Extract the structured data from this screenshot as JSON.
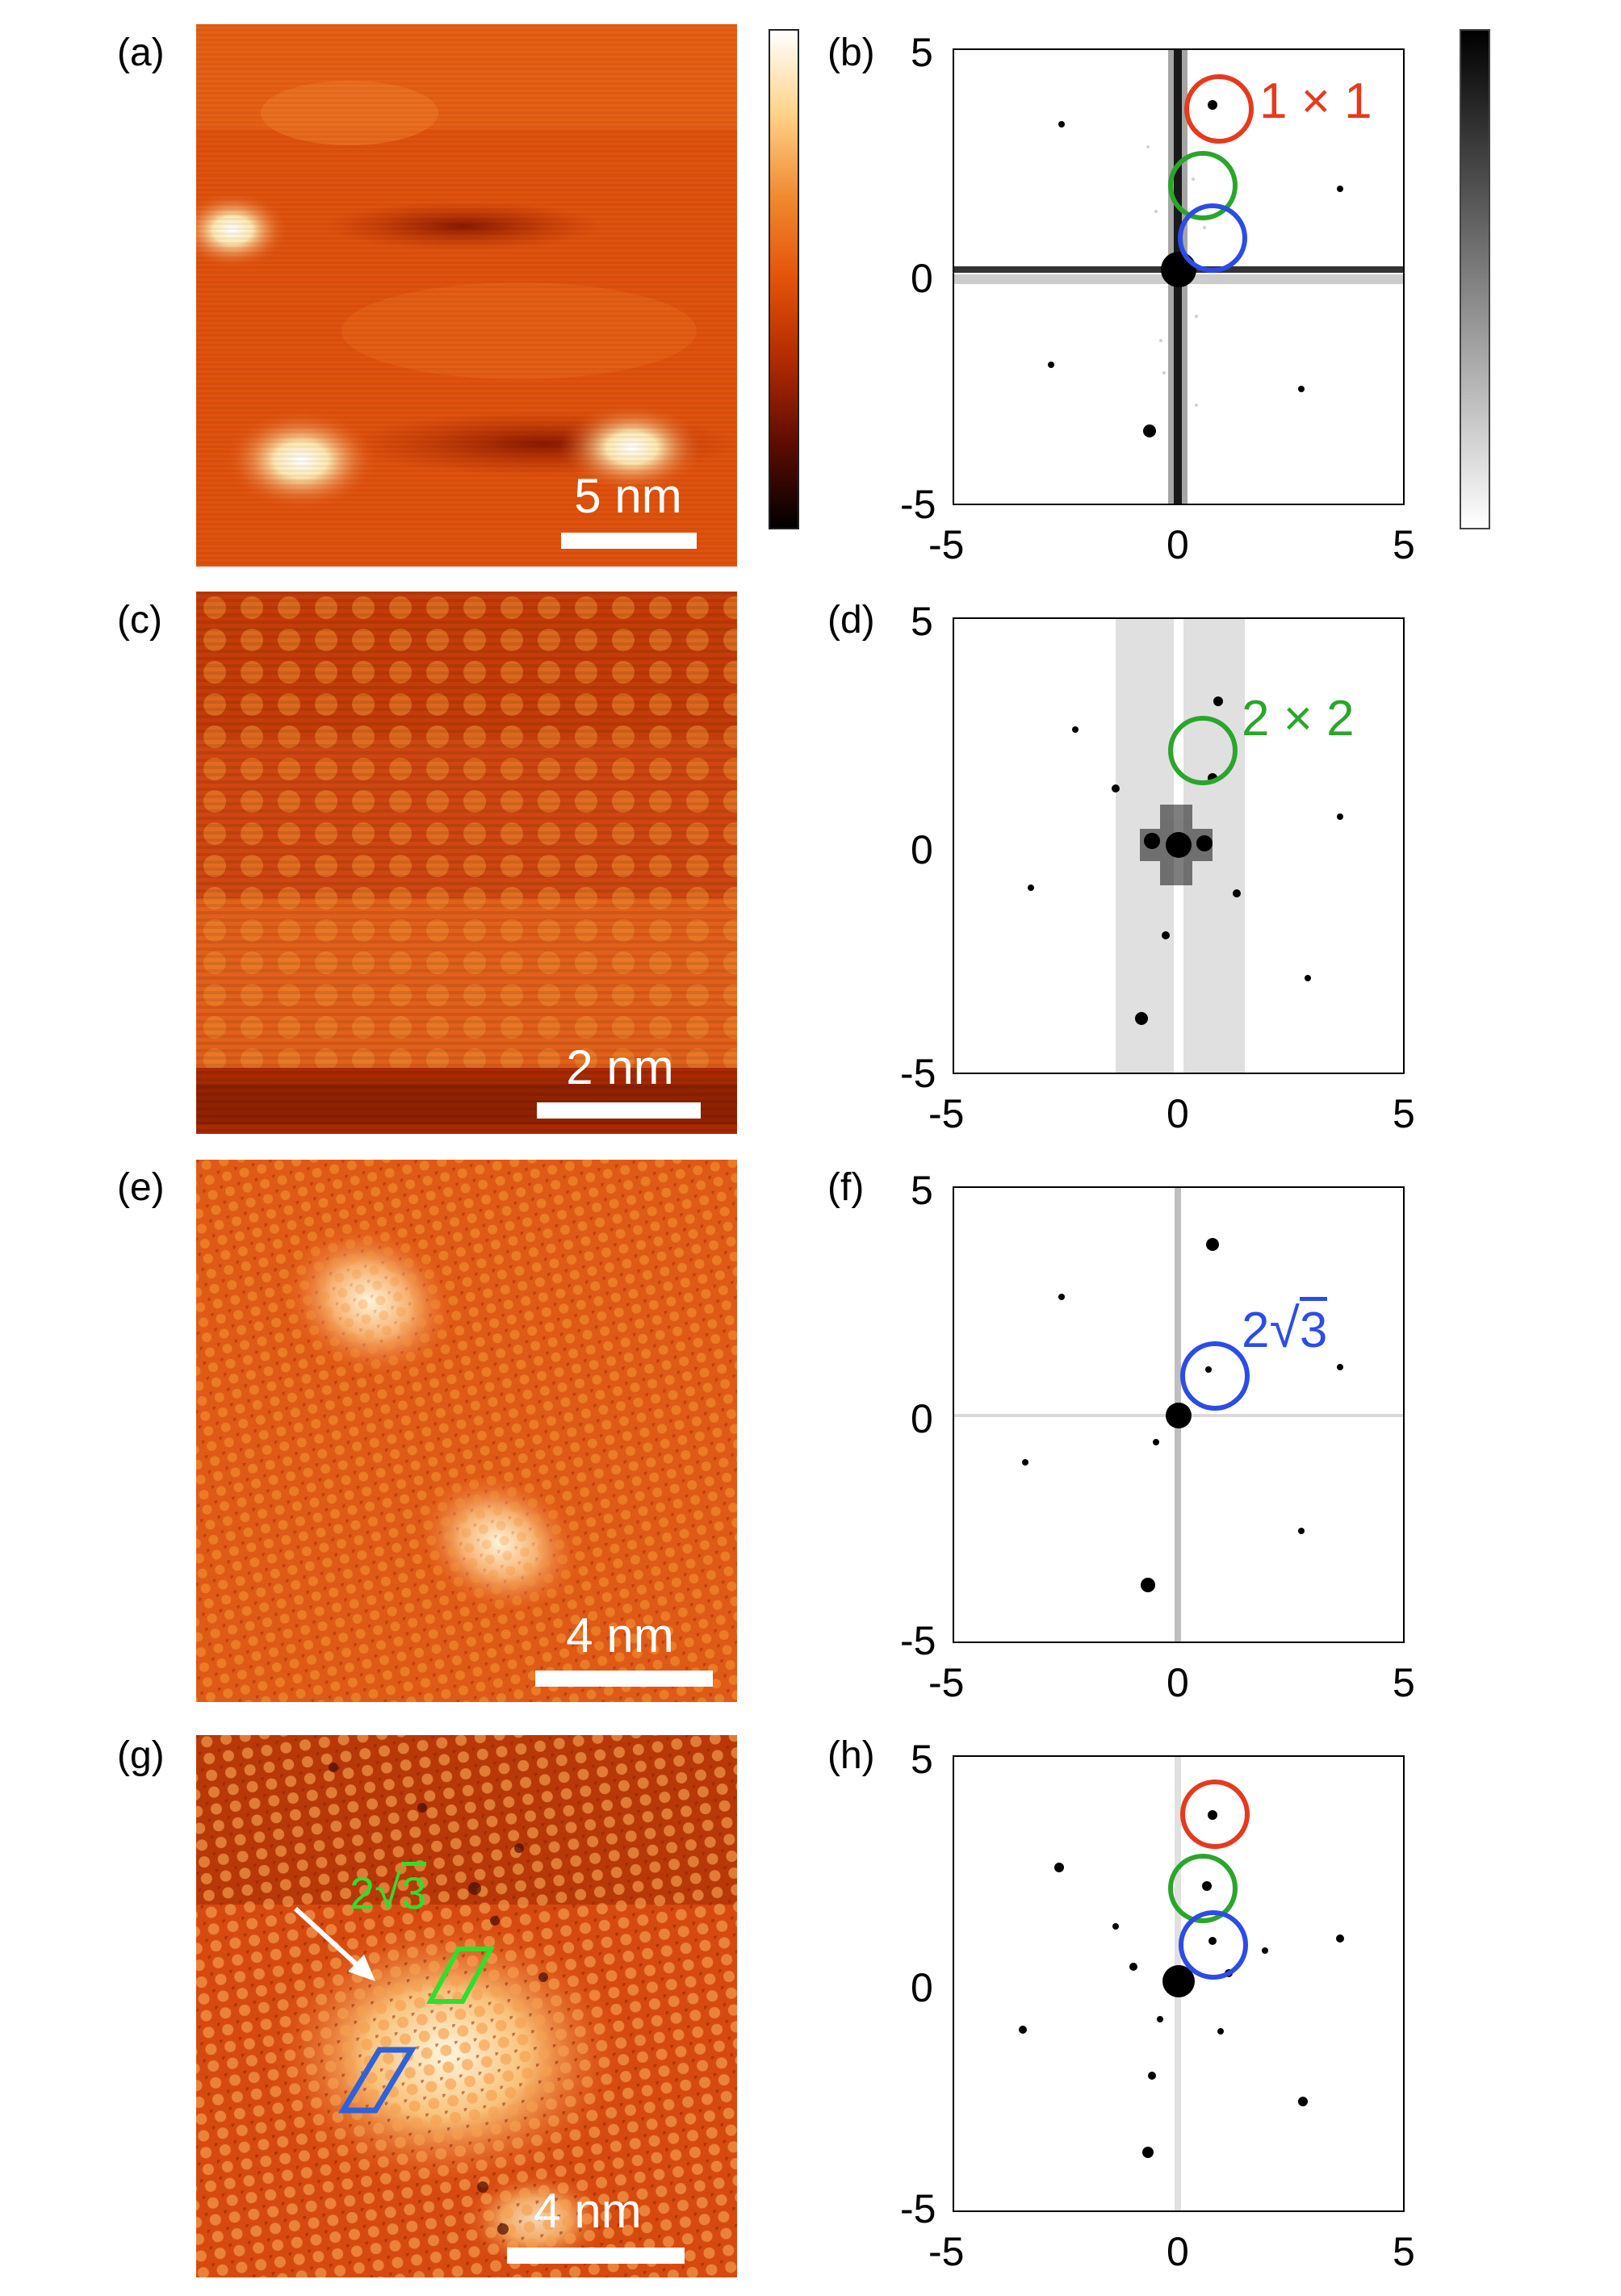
{
  "panels": {
    "a": {
      "label": "(a)",
      "scalebar": "5 nm"
    },
    "b": {
      "label": "(b)",
      "annotation": "1 × 1",
      "annotation_color": "#e63a1e"
    },
    "c": {
      "label": "(c)",
      "scalebar": "2 nm"
    },
    "d": {
      "label": "(d)",
      "annotation": "2 × 2",
      "annotation_color": "#2aa62a"
    },
    "e": {
      "label": "(e)",
      "scalebar": "4 nm"
    },
    "f": {
      "label": "(f)",
      "annotation_prefix": "2",
      "annotation_radicand": "3",
      "annotation_color": "#2c4ce6"
    },
    "g": {
      "label": "(g)",
      "scalebar": "4 nm",
      "annotation_prefix": "2",
      "annotation_radicand": "3",
      "annotation_color": "#2de02d"
    },
    "h": {
      "label": "(h)"
    }
  },
  "fft_axes": {
    "x_ticks": [
      "-5",
      "0",
      "5"
    ],
    "y_ticks": [
      "5",
      "0",
      "-5"
    ],
    "range": [
      -5,
      5
    ]
  },
  "colors": {
    "stm_colormap": [
      "#000000",
      "#5c0c00",
      "#b02a00",
      "#e4520a",
      "#f08a30",
      "#ffd28a",
      "#ffffff"
    ],
    "fft_colormap": [
      "#ffffff",
      "#000000"
    ],
    "ring_1x1": "#e63a1e",
    "ring_2x2": "#2aa62a",
    "ring_2sqrt3": "#2c4ce6",
    "arrow": "#ffffff",
    "cell_2sqrt3": "#2de02d",
    "cell_blue": "#2f62d8"
  }
}
